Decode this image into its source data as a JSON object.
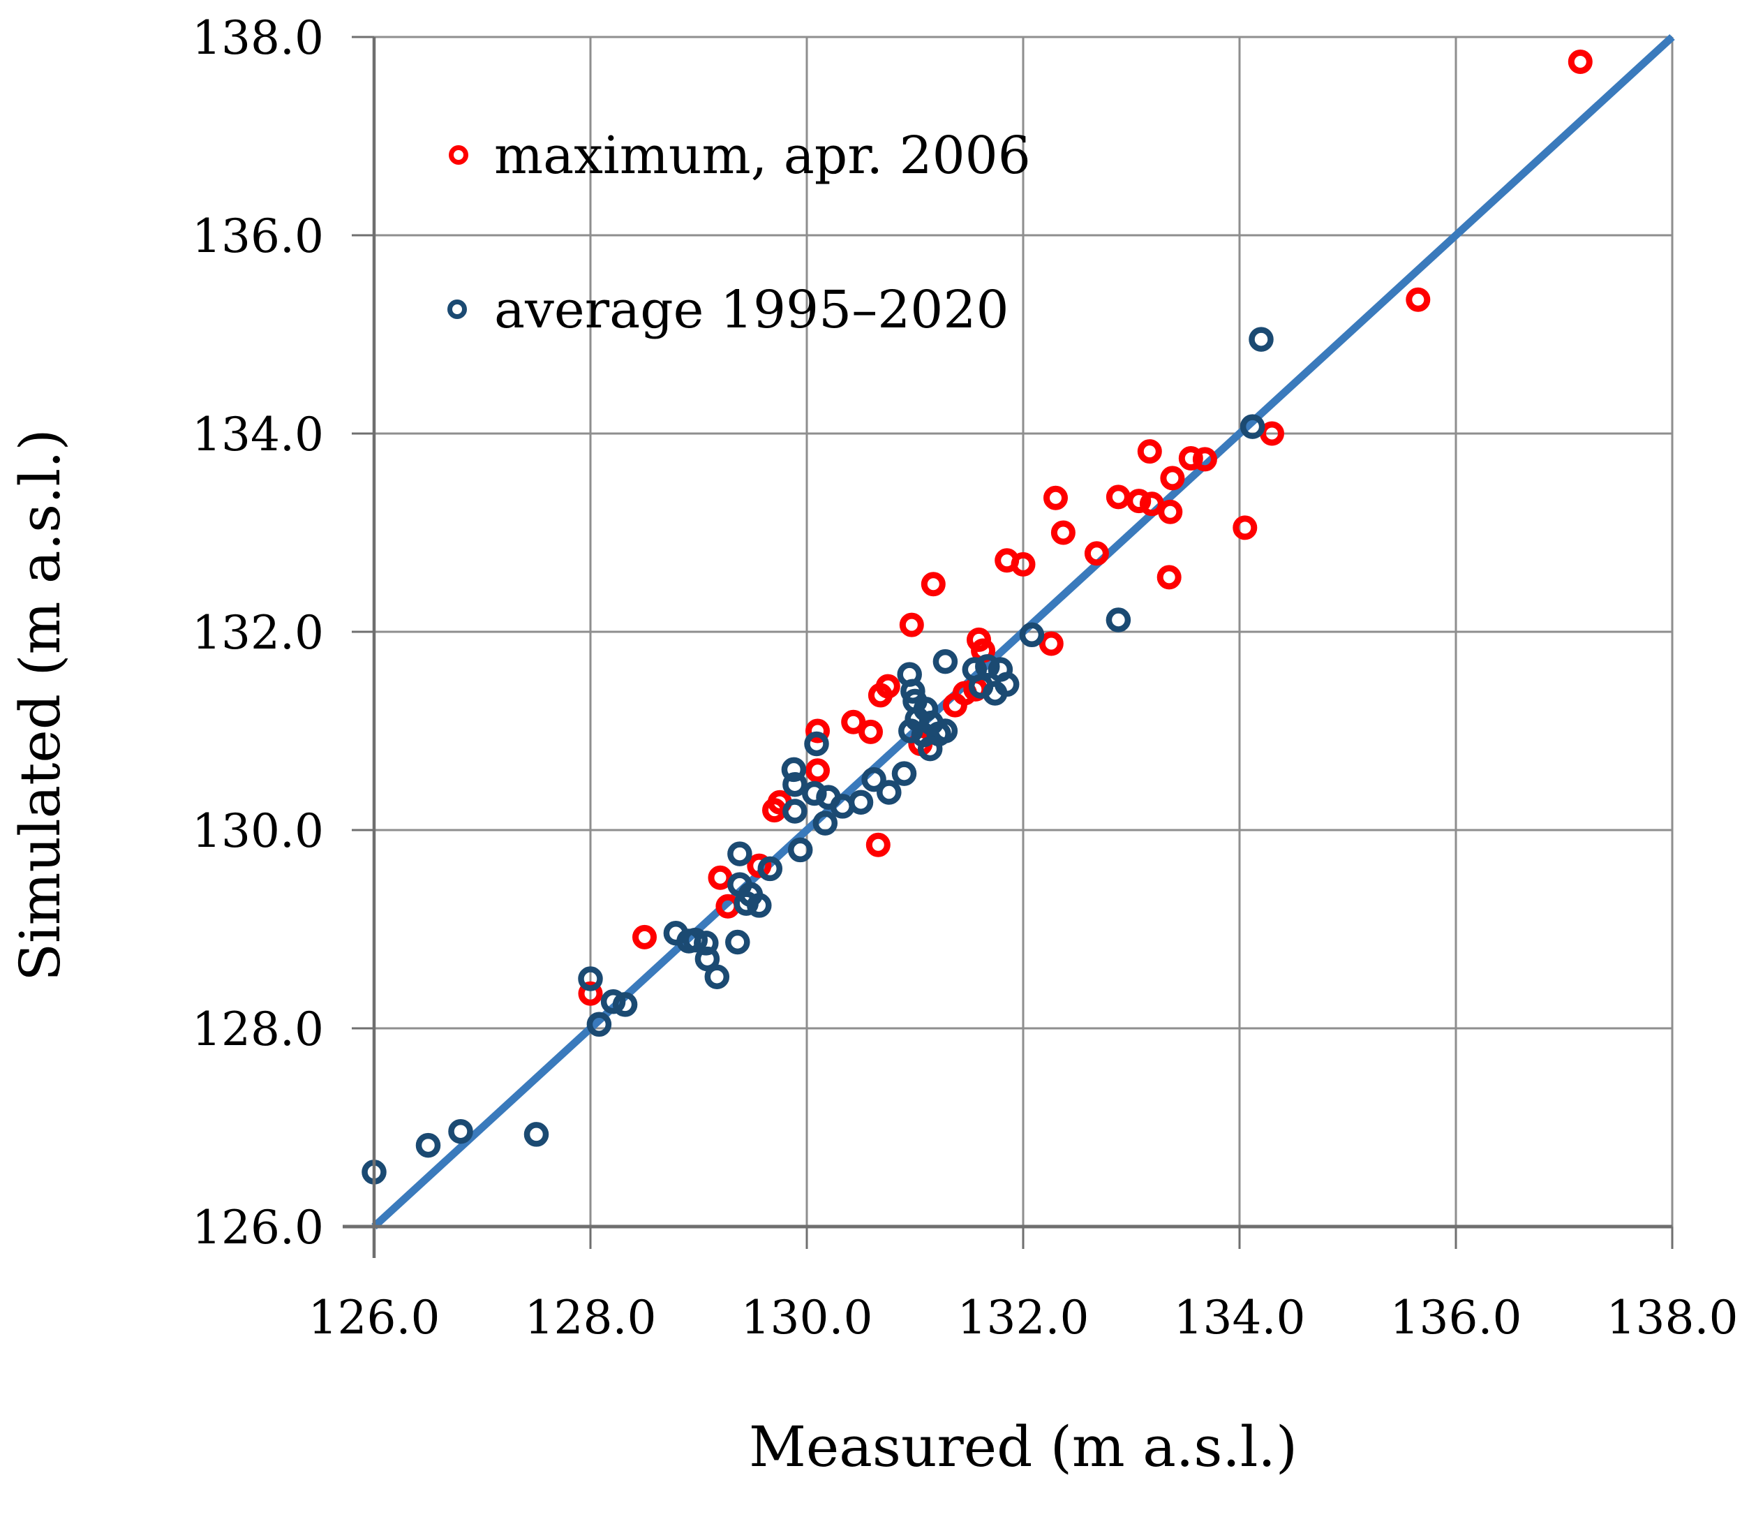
{
  "chart_data": {
    "type": "scatter",
    "title": "",
    "xlabel": "Measured  (m a.s.l.)",
    "ylabel": "Simulated  (m a.s.l.)",
    "xlim": [
      126.0,
      138.0
    ],
    "ylim": [
      126.0,
      138.0
    ],
    "ticks": [
      126,
      128,
      130,
      132,
      134,
      136,
      138
    ],
    "x_tick_labels": [
      "126.0",
      "128.0",
      "130.0",
      "132.0",
      "134.0",
      "136.0",
      "138.0"
    ],
    "y_tick_labels": [
      "126.0",
      "128.0",
      "130.0",
      "132.0",
      "134.0",
      "136.0",
      "138.0"
    ],
    "grid": true,
    "legend_position": "top-left",
    "colors": {
      "maximum_series": "#fe0000",
      "average_series": "#1b4a72",
      "identity_line": "#3a7abc",
      "gridline": "#8e8e8e",
      "axis_line": "#6f6f6f"
    },
    "identity_line": {
      "x1": 126.0,
      "y1": 126.0,
      "x2": 138.0,
      "y2": 138.0
    },
    "series": [
      {
        "name": "maximum, apr. 2006",
        "color": "#fe0000",
        "marker": "open-circle",
        "points": [
          [
            128.0,
            128.35
          ],
          [
            128.5,
            128.92
          ],
          [
            129.2,
            129.52
          ],
          [
            129.27,
            129.23
          ],
          [
            129.56,
            129.64
          ],
          [
            129.7,
            130.2
          ],
          [
            129.75,
            130.28
          ],
          [
            130.1,
            131.0
          ],
          [
            130.1,
            130.6
          ],
          [
            130.43,
            131.09
          ],
          [
            130.59,
            130.99
          ],
          [
            130.66,
            129.85
          ],
          [
            130.68,
            131.36
          ],
          [
            130.75,
            131.45
          ],
          [
            130.97,
            132.07
          ],
          [
            131.05,
            130.87
          ],
          [
            131.17,
            132.48
          ],
          [
            131.37,
            131.26
          ],
          [
            131.46,
            131.38
          ],
          [
            131.56,
            131.42
          ],
          [
            131.59,
            131.92
          ],
          [
            131.63,
            131.81
          ],
          [
            131.85,
            132.72
          ],
          [
            132.0,
            132.68
          ],
          [
            132.26,
            131.88
          ],
          [
            132.3,
            133.35
          ],
          [
            132.37,
            133.0
          ],
          [
            132.68,
            132.79
          ],
          [
            132.88,
            133.36
          ],
          [
            133.07,
            133.32
          ],
          [
            133.19,
            133.29
          ],
          [
            133.36,
            133.21
          ],
          [
            133.17,
            133.82
          ],
          [
            133.38,
            133.55
          ],
          [
            133.55,
            133.75
          ],
          [
            133.68,
            133.74
          ],
          [
            133.35,
            132.55
          ],
          [
            134.05,
            133.05
          ],
          [
            134.3,
            134.0
          ],
          [
            135.65,
            135.35
          ],
          [
            137.15,
            137.75
          ]
        ]
      },
      {
        "name": "average 1995–2020",
        "color": "#1b4a72",
        "marker": "open-circle",
        "points": [
          [
            126.0,
            126.55
          ],
          [
            126.5,
            126.82
          ],
          [
            126.8,
            126.96
          ],
          [
            127.5,
            126.93
          ],
          [
            128.0,
            128.5
          ],
          [
            128.08,
            128.04
          ],
          [
            128.21,
            128.27
          ],
          [
            128.32,
            128.24
          ],
          [
            128.79,
            128.96
          ],
          [
            128.91,
            128.88
          ],
          [
            128.97,
            128.89
          ],
          [
            129.07,
            128.86
          ],
          [
            129.08,
            128.7
          ],
          [
            129.17,
            128.52
          ],
          [
            129.36,
            128.87
          ],
          [
            129.38,
            129.76
          ],
          [
            129.38,
            129.45
          ],
          [
            129.48,
            129.35
          ],
          [
            129.44,
            129.26
          ],
          [
            129.56,
            129.24
          ],
          [
            129.66,
            129.61
          ],
          [
            129.89,
            130.19
          ],
          [
            129.94,
            129.8
          ],
          [
            129.88,
            130.61
          ],
          [
            129.89,
            130.46
          ],
          [
            130.09,
            130.87
          ],
          [
            130.07,
            130.37
          ],
          [
            130.17,
            130.07
          ],
          [
            130.2,
            130.33
          ],
          [
            130.33,
            130.24
          ],
          [
            130.5,
            130.28
          ],
          [
            130.62,
            130.51
          ],
          [
            130.76,
            130.38
          ],
          [
            130.9,
            130.57
          ],
          [
            130.95,
            131.57
          ],
          [
            130.98,
            131.4
          ],
          [
            131.0,
            131.3
          ],
          [
            131.1,
            131.22
          ],
          [
            131.02,
            131.12
          ],
          [
            131.15,
            131.08
          ],
          [
            130.96,
            131.0
          ],
          [
            131.08,
            130.96
          ],
          [
            131.22,
            130.97
          ],
          [
            131.14,
            130.82
          ],
          [
            131.28,
            131.0
          ],
          [
            131.28,
            131.7
          ],
          [
            131.55,
            131.62
          ],
          [
            131.67,
            131.65
          ],
          [
            131.79,
            131.62
          ],
          [
            131.85,
            131.47
          ],
          [
            131.74,
            131.38
          ],
          [
            131.61,
            131.45
          ],
          [
            132.08,
            131.97
          ],
          [
            132.88,
            132.12
          ],
          [
            134.12,
            134.07
          ],
          [
            134.2,
            134.95
          ]
        ]
      }
    ]
  }
}
